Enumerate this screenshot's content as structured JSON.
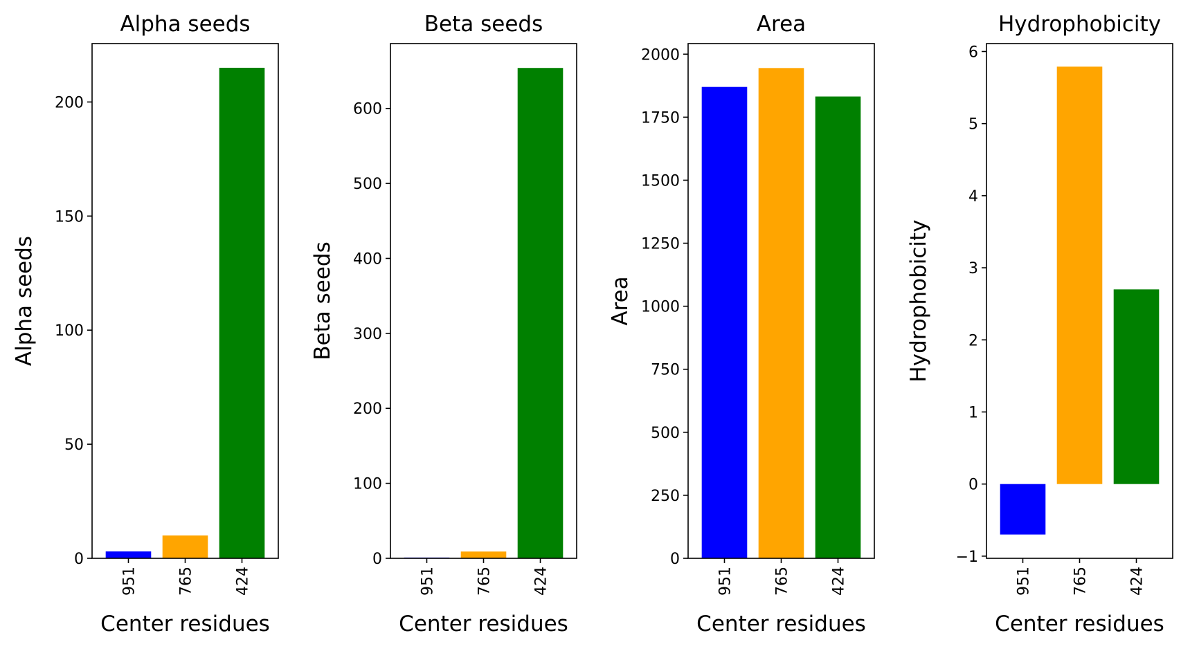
{
  "chart_data": [
    {
      "type": "bar",
      "title": "Alpha seeds",
      "xlabel": "Center residues",
      "ylabel": "Alpha seeds",
      "categories": [
        "951",
        "765",
        "424"
      ],
      "values": [
        3,
        10,
        215
      ],
      "colors": [
        "#0000ff",
        "#ffa500",
        "#008000"
      ],
      "ylim": [
        0,
        225.6
      ],
      "yticks": [
        0,
        50,
        100,
        150,
        200
      ],
      "grid": false
    },
    {
      "type": "bar",
      "title": "Beta seeds",
      "xlabel": "Center residues",
      "ylabel": "Beta seeds",
      "categories": [
        "951",
        "765",
        "424"
      ],
      "values": [
        1,
        9,
        654
      ],
      "colors": [
        "#0000ff",
        "#ffa500",
        "#008000"
      ],
      "ylim": [
        0,
        686.5
      ],
      "yticks": [
        0,
        100,
        200,
        300,
        400,
        500,
        600
      ],
      "grid": false
    },
    {
      "type": "bar",
      "title": "Area",
      "xlabel": "Center residues",
      "ylabel": "Area",
      "categories": [
        "951",
        "765",
        "424"
      ],
      "values": [
        1870,
        1945,
        1832
      ],
      "colors": [
        "#0000ff",
        "#ffa500",
        "#008000"
      ],
      "ylim": [
        0,
        2042
      ],
      "yticks": [
        0,
        250,
        500,
        750,
        1000,
        1250,
        1500,
        1750,
        2000
      ],
      "grid": false
    },
    {
      "type": "bar",
      "title": "Hydrophobicity",
      "xlabel": "Center residues",
      "ylabel": "Hydrophobicity",
      "categories": [
        "951",
        "765",
        "424"
      ],
      "values": [
        -0.7,
        5.79,
        2.7
      ],
      "colors": [
        "#0000ff",
        "#ffa500",
        "#008000"
      ],
      "ylim": [
        -1.03,
        6.11
      ],
      "yticks": [
        -1,
        0,
        1,
        2,
        3,
        4,
        5,
        6
      ],
      "grid": false
    }
  ]
}
